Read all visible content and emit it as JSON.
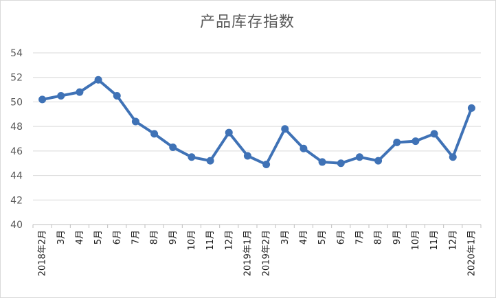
{
  "chart_data": {
    "type": "line",
    "title": "产品库存指数",
    "xlabel": "",
    "ylabel": "",
    "ylim": [
      40,
      54
    ],
    "yticks": [
      40,
      42,
      44,
      46,
      48,
      50,
      52,
      54
    ],
    "grid": true,
    "legend": "none",
    "categories": [
      "2018年2月",
      "3月",
      "4月",
      "5月",
      "6月",
      "7月",
      "8月",
      "9月",
      "10月",
      "11月",
      "12月",
      "2019年1月",
      "2019年2月",
      "3月",
      "4月",
      "5月",
      "6月",
      "7月",
      "8月",
      "9月",
      "10月",
      "11月",
      "12月",
      "2020年1月"
    ],
    "series": [
      {
        "values": [
          50.2,
          50.5,
          50.8,
          51.8,
          50.5,
          48.4,
          47.4,
          46.3,
          45.5,
          45.2,
          47.5,
          45.6,
          44.9,
          47.8,
          46.2,
          45.1,
          45.0,
          45.5,
          45.2,
          46.7,
          46.8,
          47.4,
          45.5,
          49.5
        ],
        "color": "#3f72b6"
      }
    ],
    "colors": {
      "line": "#3f72b6",
      "grid": "#d9d9d9",
      "axis": "#bfbfbf"
    }
  }
}
